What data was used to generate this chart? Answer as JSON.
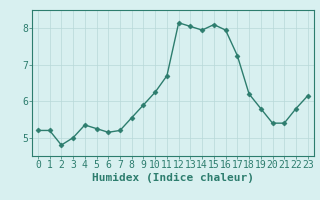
{
  "x": [
    0,
    1,
    2,
    3,
    4,
    5,
    6,
    7,
    8,
    9,
    10,
    11,
    12,
    13,
    14,
    15,
    16,
    17,
    18,
    19,
    20,
    21,
    22,
    23
  ],
  "y": [
    5.2,
    5.2,
    4.8,
    5.0,
    5.35,
    5.25,
    5.15,
    5.2,
    5.55,
    5.9,
    6.25,
    6.7,
    8.15,
    8.05,
    7.95,
    8.1,
    7.95,
    7.25,
    6.2,
    5.8,
    5.4,
    5.4,
    5.8,
    6.15
  ],
  "xlabel": "Humidex (Indice chaleur)",
  "ylabel": "",
  "ylim": [
    4.5,
    8.5
  ],
  "xlim_min": -0.5,
  "xlim_max": 23.5,
  "yticks": [
    5,
    6,
    7,
    8
  ],
  "xticks": [
    0,
    1,
    2,
    3,
    4,
    5,
    6,
    7,
    8,
    9,
    10,
    11,
    12,
    13,
    14,
    15,
    16,
    17,
    18,
    19,
    20,
    21,
    22,
    23
  ],
  "line_color": "#2d7d6e",
  "marker": "D",
  "marker_size": 2.5,
  "bg_color": "#d8f0f0",
  "grid_color": "#b8d8d8",
  "xlabel_fontsize": 8,
  "tick_fontsize": 7
}
